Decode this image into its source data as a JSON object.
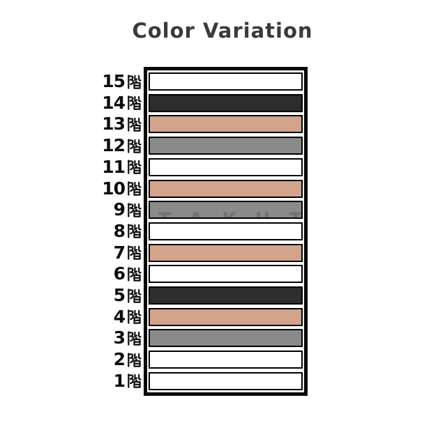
{
  "header": {
    "title": "Color Variation"
  },
  "colors": {
    "white": "#ffffff",
    "dark": "#2d2d2d",
    "salmon": "#d2a48c",
    "gray": "#8a8a8a",
    "border": "#000000",
    "title_text": "#3a3a3a",
    "label_text": "#0d0d0d"
  },
  "watermark": "TAKUT",
  "chart_data": {
    "type": "bar",
    "title": "Color Variation",
    "xlabel": "",
    "ylabel": "",
    "legend": false,
    "grid": false,
    "orientation": "horizontal",
    "note": "each floor row is a full-width bar whose fill color encodes the category",
    "categories": [
      "15階",
      "14階",
      "13階",
      "12階",
      "11階",
      "10階",
      "9階",
      "8階",
      "7階",
      "6階",
      "5階",
      "4階",
      "3階",
      "2階",
      "1階"
    ],
    "rows": [
      {
        "label": "15階",
        "number": "15",
        "color_name": "white",
        "color": "#ffffff"
      },
      {
        "label": "14階",
        "number": "14",
        "color_name": "dark",
        "color": "#2d2d2d"
      },
      {
        "label": "13階",
        "number": "13",
        "color_name": "salmon",
        "color": "#d2a48c"
      },
      {
        "label": "12階",
        "number": "12",
        "color_name": "gray",
        "color": "#8a8a8a"
      },
      {
        "label": "11階",
        "number": "11",
        "color_name": "white",
        "color": "#ffffff"
      },
      {
        "label": "10階",
        "number": "10",
        "color_name": "salmon",
        "color": "#d2a48c"
      },
      {
        "label": "9階",
        "number": "9",
        "color_name": "gray",
        "color": "#8a8a8a",
        "watermark": "TAKUT"
      },
      {
        "label": "8階",
        "number": "8",
        "color_name": "white",
        "color": "#ffffff"
      },
      {
        "label": "7階",
        "number": "7",
        "color_name": "salmon",
        "color": "#d2a48c"
      },
      {
        "label": "6階",
        "number": "6",
        "color_name": "white",
        "color": "#ffffff"
      },
      {
        "label": "5階",
        "number": "5",
        "color_name": "dark",
        "color": "#2d2d2d"
      },
      {
        "label": "4階",
        "number": "4",
        "color_name": "salmon",
        "color": "#d2a48c"
      },
      {
        "label": "3階",
        "number": "3",
        "color_name": "gray",
        "color": "#8a8a8a"
      },
      {
        "label": "2階",
        "number": "2",
        "color_name": "white",
        "color": "#ffffff"
      },
      {
        "label": "1階",
        "number": "1",
        "color_name": "white",
        "color": "#ffffff"
      }
    ]
  }
}
